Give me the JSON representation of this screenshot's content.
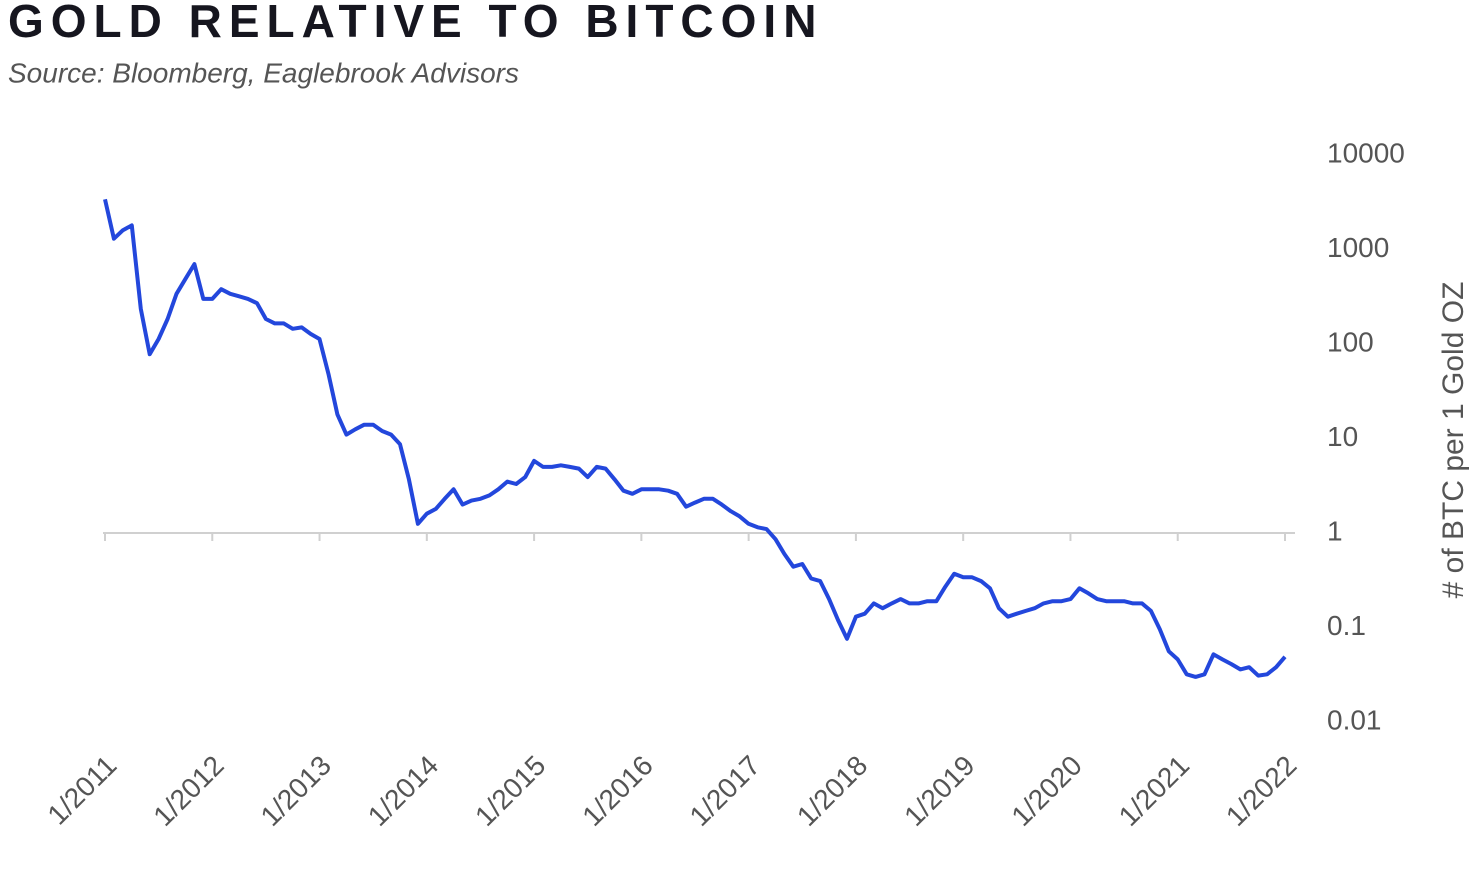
{
  "chart_data": {
    "type": "line",
    "title": "GOLD RELATIVE TO BITCOIN",
    "subtitle": "Source: Bloomberg, Eaglebrook Advisors",
    "y_axis_title": "# of BTC per 1 Gold OZ",
    "log_scale": true,
    "y_axis_side": "right",
    "x_axis_crosses": 1,
    "ylim": [
      0.01,
      10000
    ],
    "yticks": [
      10000,
      1000,
      100,
      10,
      1,
      0.1,
      0.01
    ],
    "xticks": [
      "1/2011",
      "1/2012",
      "1/2013",
      "1/2014",
      "1/2015",
      "1/2016",
      "1/2017",
      "1/2018",
      "1/2019",
      "1/2020",
      "1/2021",
      "1/2022"
    ],
    "x": [
      "1/2011",
      "2/2011",
      "3/2011",
      "4/2011",
      "5/2011",
      "6/2011",
      "7/2011",
      "8/2011",
      "9/2011",
      "10/2011",
      "11/2011",
      "12/2011",
      "1/2012",
      "2/2012",
      "3/2012",
      "4/2012",
      "5/2012",
      "6/2012",
      "7/2012",
      "8/2012",
      "9/2012",
      "10/2012",
      "11/2012",
      "12/2012",
      "1/2013",
      "2/2013",
      "3/2013",
      "4/2013",
      "5/2013",
      "6/2013",
      "7/2013",
      "8/2013",
      "9/2013",
      "10/2013",
      "11/2013",
      "12/2013",
      "1/2014",
      "2/2014",
      "3/2014",
      "4/2014",
      "5/2014",
      "6/2014",
      "7/2014",
      "8/2014",
      "9/2014",
      "10/2014",
      "11/2014",
      "12/2014",
      "1/2015",
      "2/2015",
      "3/2015",
      "4/2015",
      "5/2015",
      "6/2015",
      "7/2015",
      "8/2015",
      "9/2015",
      "10/2015",
      "11/2015",
      "12/2015",
      "1/2016",
      "2/2016",
      "3/2016",
      "4/2016",
      "5/2016",
      "6/2016",
      "7/2016",
      "8/2016",
      "9/2016",
      "10/2016",
      "11/2016",
      "12/2016",
      "1/2017",
      "2/2017",
      "3/2017",
      "4/2017",
      "5/2017",
      "6/2017",
      "7/2017",
      "8/2017",
      "9/2017",
      "10/2017",
      "11/2017",
      "12/2017",
      "1/2018",
      "2/2018",
      "3/2018",
      "4/2018",
      "5/2018",
      "6/2018",
      "7/2018",
      "8/2018",
      "9/2018",
      "10/2018",
      "11/2018",
      "12/2018",
      "1/2019",
      "2/2019",
      "3/2019",
      "4/2019",
      "5/2019",
      "6/2019",
      "7/2019",
      "8/2019",
      "9/2019",
      "10/2019",
      "11/2019",
      "12/2019",
      "1/2020",
      "2/2020",
      "3/2020",
      "4/2020",
      "5/2020",
      "6/2020",
      "7/2020",
      "8/2020",
      "9/2020",
      "10/2020",
      "11/2020",
      "12/2020",
      "1/2021",
      "2/2021",
      "3/2021",
      "4/2021",
      "5/2021",
      "6/2021",
      "7/2021",
      "8/2021",
      "9/2021",
      "10/2021",
      "11/2021",
      "12/2021",
      "1/2022"
    ],
    "series": [
      {
        "name": "Gold relative to Bitcoin",
        "color": "#2347dc",
        "values": [
          3400,
          1300,
          1600,
          1800,
          235,
          78,
          113,
          184,
          340,
          490,
          700,
          300,
          300,
          380,
          340,
          320,
          300,
          270,
          184,
          165,
          165,
          145,
          150,
          128,
          113,
          48,
          18,
          11,
          12.5,
          14,
          14,
          12,
          11,
          8.7,
          3.7,
          1.25,
          1.6,
          1.8,
          2.3,
          2.9,
          2.0,
          2.2,
          2.3,
          2.5,
          2.9,
          3.5,
          3.3,
          3.9,
          5.8,
          5.0,
          5.0,
          5.2,
          5.0,
          4.8,
          3.9,
          5.0,
          4.8,
          3.7,
          2.8,
          2.6,
          2.9,
          2.9,
          2.9,
          2.8,
          2.6,
          1.9,
          2.1,
          2.3,
          2.3,
          2.0,
          1.7,
          1.5,
          1.25,
          1.15,
          1.1,
          0.86,
          0.6,
          0.44,
          0.47,
          0.33,
          0.31,
          0.2,
          0.12,
          0.076,
          0.13,
          0.14,
          0.18,
          0.16,
          0.18,
          0.2,
          0.18,
          0.18,
          0.19,
          0.19,
          0.27,
          0.37,
          0.34,
          0.34,
          0.31,
          0.26,
          0.16,
          0.13,
          0.14,
          0.15,
          0.16,
          0.18,
          0.19,
          0.19,
          0.2,
          0.26,
          0.23,
          0.2,
          0.19,
          0.19,
          0.19,
          0.18,
          0.18,
          0.15,
          0.096,
          0.056,
          0.046,
          0.032,
          0.03,
          0.032,
          0.052,
          0.046,
          0.041,
          0.036,
          0.038,
          0.031,
          0.032,
          0.038,
          0.049
        ]
      }
    ]
  }
}
